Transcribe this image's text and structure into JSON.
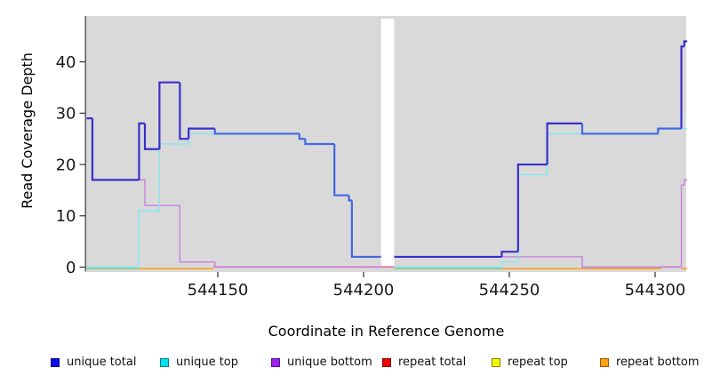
{
  "chart_data": {
    "type": "line",
    "title": "",
    "xlabel": "Coordinate in Reference Genome",
    "ylabel": "Read Coverage Depth",
    "x_ticks": [
      544150,
      544200,
      544250,
      544300
    ],
    "y_ticks": [
      0,
      10,
      20,
      30,
      40
    ],
    "xlim": [
      544105,
      544311
    ],
    "ylim": [
      0,
      49
    ],
    "plot_background": "#D9D9D9",
    "grid": "off",
    "legend_position": "bottom",
    "gap": {
      "from": 544206,
      "to": 544210.5
    },
    "series": [
      {
        "name": "unique total",
        "legend_color": "#0B0BEB",
        "line_color": "#3A2FC9",
        "overlap_line_color": "#4169E1",
        "segments": [
          [
            [
              544105,
              29
            ],
            [
              544107,
              17
            ],
            [
              544123,
              28
            ],
            [
              544125,
              23
            ],
            [
              544130,
              36
            ],
            [
              544137,
              25
            ],
            [
              544140,
              27
            ],
            [
              544149,
              26
            ],
            [
              544178,
              25
            ],
            [
              544180,
              24
            ],
            [
              544190,
              14
            ],
            [
              544195,
              13
            ],
            [
              544196,
              2
            ]
          ],
          [
            [
              544210.5,
              2
            ],
            [
              544247.4,
              3
            ],
            [
              544253,
              20
            ],
            [
              544263,
              28
            ],
            [
              544275,
              26
            ],
            [
              544301,
              27
            ],
            [
              544309,
              43
            ],
            [
              544310,
              44
            ]
          ]
        ]
      },
      {
        "name": "unique top",
        "legend_color": "#00E3EE",
        "line_color": "#84E8F0",
        "segments": [
          [
            [
              544105,
              0
            ],
            [
              544123,
              11
            ],
            [
              544130,
              24
            ],
            [
              544140,
              26
            ],
            [
              544178,
              25
            ],
            [
              544180,
              24
            ],
            [
              544190,
              14
            ],
            [
              544195,
              13
            ],
            [
              544196,
              2
            ]
          ],
          [
            [
              544210.5,
              0
            ],
            [
              544247.4,
              1
            ],
            [
              544253,
              18
            ],
            [
              544263,
              26
            ],
            [
              544301,
              27
            ]
          ]
        ]
      },
      {
        "name": "unique bottom",
        "legend_color": "#A020F0",
        "line_color": "#C681E0",
        "segments": [
          [
            [
              544105,
              29
            ],
            [
              544107,
              17
            ],
            [
              544125,
              12
            ],
            [
              544137,
              1
            ],
            [
              544149,
              0
            ]
          ],
          [
            [
              544210.5,
              2
            ],
            [
              544275,
              0
            ],
            [
              544309,
              16
            ],
            [
              544310,
              17
            ]
          ]
        ]
      },
      {
        "name": "repeat total",
        "legend_color": "#EE0000",
        "line_color": "#E0608C",
        "segments": [
          [
            [
              544105,
              0
            ]
          ],
          [
            [
              544210.5,
              0
            ]
          ]
        ]
      },
      {
        "name": "repeat top",
        "legend_color": "#F5F500",
        "line_color": "#F5F500",
        "segments": [
          [
            [
              544105,
              0
            ]
          ],
          [
            [
              544210.5,
              0
            ]
          ]
        ]
      },
      {
        "name": "repeat bottom",
        "legend_color": "#FFA013",
        "line_color": "#FFA013",
        "segments": [
          [
            [
              544105,
              0
            ]
          ],
          [
            [
              544210.5,
              0
            ]
          ]
        ]
      }
    ],
    "baseline_segments": [
      {
        "from": 544105,
        "to": 544123,
        "color": "#84C884"
      },
      {
        "from": 544123,
        "to": 544148.5,
        "color": "#FFA013"
      },
      {
        "from": 544148.5,
        "to": 544210.5,
        "color": "#E0608C"
      },
      {
        "from": 544210.5,
        "to": 544247.4,
        "color": "#84C884"
      },
      {
        "from": 544247.4,
        "to": 544302,
        "color": "#FFA013"
      },
      {
        "from": 544302,
        "to": 544309,
        "color": "#E0608C"
      },
      {
        "from": 544309,
        "to": 544311,
        "color": "#FFA013"
      }
    ]
  }
}
